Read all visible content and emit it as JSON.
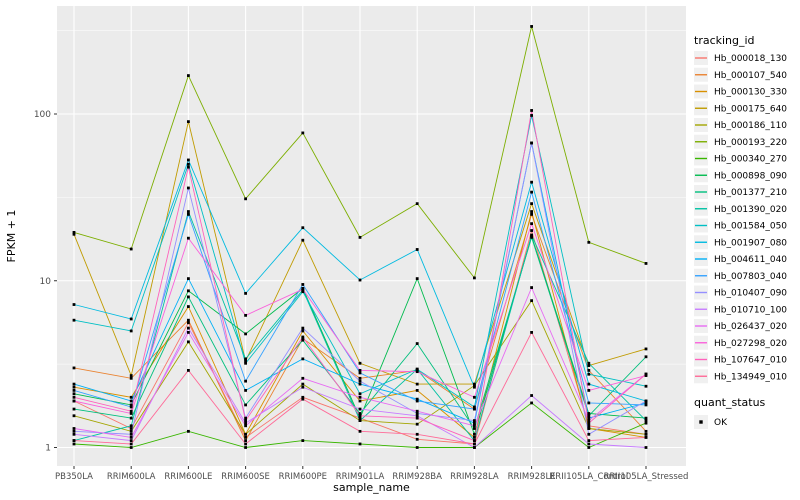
{
  "figure": {
    "kind": "ggplot2-line-chart",
    "panel_bg": "#EBEBEB",
    "grid_color": "#FFFFFF",
    "tick_label_color": "#4D4D4D",
    "axis_title_color": "#000000",
    "point_color": "#000000",
    "legend_key_bg": "#F0F0F0"
  },
  "chart_data": {
    "type": "line",
    "title": "",
    "xlabel": "sample_name",
    "ylabel": "FPKM + 1",
    "y_scale": "log10",
    "y_ticks": [
      1,
      10,
      100
    ],
    "y_minor": [
      3.1623,
      31.623,
      316.23
    ],
    "ylim": [
      1,
      450
    ],
    "grid": true,
    "legend_position": "right",
    "legend_title": "tracking_id",
    "legend2_title": "quant_status",
    "legend2_items": [
      "OK"
    ],
    "categories": [
      "PB350LA",
      "RRIM600LA",
      "RRIM600LE",
      "RRIM600SE",
      "RRIM600PE",
      "RRIM901LA",
      "RRIM928BA",
      "RRIM928LA",
      "RRIM928LE",
      "RRII105LA_Control",
      "RRII105LA_Stressed"
    ],
    "series": [
      {
        "name": "Hb_000018_130",
        "color": "#F8766D",
        "values": [
          1.9,
          1.3,
          5.6,
          1.15,
          2.0,
          1.5,
          1.12,
          1.05,
          20,
          1.35,
          1.2
        ]
      },
      {
        "name": "Hb_000107_540",
        "color": "#EA8331",
        "values": [
          3.0,
          2.6,
          5.8,
          1.1,
          4.5,
          2.6,
          2.9,
          1.7,
          25,
          2.9,
          1.25
        ]
      },
      {
        "name": "Hb_000130_330",
        "color": "#D89000",
        "values": [
          2.3,
          2.0,
          7.0,
          1.2,
          5.0,
          1.9,
          2.2,
          1.15,
          26,
          1.3,
          1.15
        ]
      },
      {
        "name": "Hb_000175_640",
        "color": "#C09B00",
        "values": [
          19,
          2.7,
          90,
          3.3,
          17.5,
          3.2,
          2.4,
          2.4,
          29,
          3.1,
          3.9
        ]
      },
      {
        "name": "Hb_000186_110",
        "color": "#A3A500",
        "values": [
          1.55,
          1.25,
          4.3,
          1.2,
          2.4,
          1.45,
          1.38,
          2.35,
          7.6,
          1.3,
          1.2
        ]
      },
      {
        "name": "Hb_000193_220",
        "color": "#7CAE00",
        "values": [
          19.5,
          15.5,
          170,
          31,
          77,
          18.2,
          29,
          10.4,
          335,
          17,
          12.7
        ]
      },
      {
        "name": "Hb_000340_270",
        "color": "#39B600",
        "values": [
          1.05,
          1.0,
          1.25,
          1.0,
          1.1,
          1.05,
          1.0,
          1.0,
          1.85,
          1.0,
          1.4
        ]
      },
      {
        "name": "Hb_000898_090",
        "color": "#00BB4E",
        "values": [
          2.1,
          1.8,
          8.7,
          4.8,
          9.0,
          1.5,
          10.3,
          1.2,
          18.5,
          1.6,
          1.5
        ]
      },
      {
        "name": "Hb_001377_210",
        "color": "#00BF7D",
        "values": [
          1.7,
          1.5,
          8.0,
          1.8,
          4.4,
          1.6,
          4.2,
          1.3,
          18.2,
          1.55,
          3.5
        ]
      },
      {
        "name": "Hb_001390_020",
        "color": "#00C1A3",
        "values": [
          1.1,
          1.35,
          26,
          3.4,
          8.8,
          1.45,
          2.95,
          1.1,
          18.8,
          3.2,
          1.45
        ]
      },
      {
        "name": "Hb_001584_050",
        "color": "#00BFC4",
        "values": [
          5.8,
          5.0,
          50,
          3.2,
          8.6,
          2.1,
          2.95,
          1.75,
          98,
          2.75,
          2.33
        ]
      },
      {
        "name": "Hb_001907_080",
        "color": "#00BAE0",
        "values": [
          7.2,
          5.9,
          53,
          8.4,
          20.8,
          10.1,
          15.4,
          2.3,
          39,
          2.4,
          1.9
        ]
      },
      {
        "name": "Hb_004611_040",
        "color": "#00B0F6",
        "values": [
          2.4,
          1.9,
          10.3,
          2.2,
          3.4,
          2.4,
          1.95,
          1.4,
          67,
          1.5,
          1.85
        ]
      },
      {
        "name": "Hb_007803_040",
        "color": "#35A2FF",
        "values": [
          2.2,
          1.75,
          25,
          2.5,
          9.5,
          2.8,
          1.9,
          1.7,
          34,
          1.85,
          1.8
        ]
      },
      {
        "name": "Hb_010407_090",
        "color": "#9590FF",
        "values": [
          1.25,
          1.2,
          36,
          1.5,
          5.2,
          2.5,
          1.6,
          1.45,
          67,
          1.2,
          1.9
        ]
      },
      {
        "name": "Hb_010710_100",
        "color": "#C77CFF",
        "values": [
          1.2,
          1.1,
          5.2,
          1.4,
          2.3,
          1.7,
          1.55,
          1.0,
          2.05,
          1.05,
          1.0
        ]
      },
      {
        "name": "Hb_026437_020",
        "color": "#E76BF3",
        "values": [
          1.3,
          1.15,
          4.9,
          1.35,
          2.6,
          2.0,
          1.65,
          1.35,
          9.1,
          1.45,
          2.76
        ]
      },
      {
        "name": "Hb_027298_020",
        "color": "#FA62DB",
        "values": [
          1.9,
          1.6,
          18,
          6.2,
          8.9,
          2.9,
          2.85,
          2.0,
          22,
          2.2,
          2.7
        ]
      },
      {
        "name": "Hb_107647_010",
        "color": "#FF62BC",
        "values": [
          2.0,
          1.65,
          48,
          1.45,
          4.6,
          1.55,
          1.5,
          1.1,
          105,
          1.4,
          2.75
        ]
      },
      {
        "name": "Hb_134949_010",
        "color": "#FF6A98",
        "values": [
          1.1,
          1.05,
          2.9,
          1.05,
          1.95,
          1.25,
          1.2,
          1.05,
          4.9,
          1.1,
          1.15
        ]
      }
    ]
  }
}
